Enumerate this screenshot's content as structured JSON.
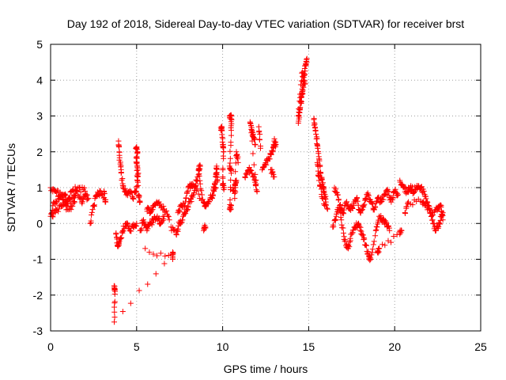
{
  "chart_data": {
    "type": "scatter",
    "title": "Day 192 of 2018, Sidereal Day-to-day VTEC variation (SDTVAR) for receiver brst",
    "xlabel": "GPS time / hours",
    "ylabel": "SDTVAR / TECUs",
    "xlim": [
      0,
      25
    ],
    "ylim": [
      -3,
      5
    ],
    "xticks": [
      0,
      5,
      10,
      15,
      20,
      25
    ],
    "yticks": [
      -3,
      -2,
      -1,
      0,
      1,
      2,
      3,
      4,
      5
    ],
    "xtick_labels": [
      "0",
      "5",
      "10",
      "15",
      "20",
      "25"
    ],
    "ytick_labels": [
      "-3",
      "-2",
      "-1",
      "0",
      "1",
      "2",
      "3",
      "4",
      "5"
    ],
    "grid": true,
    "marker": "+",
    "series": [
      {
        "name": "SDTVAR",
        "color": "#ff0000",
        "segments": [
          [
            [
              0.0,
              0.2
            ],
            [
              0.2,
              0.6
            ],
            [
              0.5,
              0.7
            ],
            [
              0.8,
              0.8
            ],
            [
              1.0,
              0.6
            ],
            [
              1.3,
              0.7
            ],
            [
              1.5,
              0.9
            ],
            [
              1.8,
              0.6
            ],
            [
              2.0,
              0.8
            ],
            [
              2.2,
              0.7
            ]
          ],
          [
            [
              0.0,
              1.0
            ],
            [
              0.3,
              0.9
            ],
            [
              0.6,
              0.8
            ],
            [
              0.9,
              0.5
            ],
            [
              1.2,
              0.9
            ],
            [
              1.6,
              1.0
            ],
            [
              2.0,
              0.9
            ]
          ],
          [
            [
              0.1,
              0.2
            ],
            [
              0.4,
              0.4
            ],
            [
              0.7,
              0.5
            ],
            [
              1.1,
              0.4
            ],
            [
              1.4,
              0.6
            ]
          ],
          [
            [
              2.3,
              0.0
            ],
            [
              2.5,
              0.5
            ],
            [
              2.7,
              0.8
            ],
            [
              2.9,
              0.9
            ],
            [
              3.2,
              0.6
            ],
            [
              3.1,
              0.9
            ]
          ],
          [
            [
              3.8,
              -0.3
            ],
            [
              3.9,
              -0.6
            ],
            [
              4.0,
              -0.5
            ],
            [
              4.2,
              -0.2
            ],
            [
              4.4,
              0.0
            ],
            [
              4.6,
              -0.2
            ],
            [
              4.8,
              -0.1
            ],
            [
              5.0,
              0.0
            ]
          ],
          [
            [
              3.95,
              2.3
            ],
            [
              4.0,
              1.9
            ],
            [
              4.1,
              1.5
            ],
            [
              4.2,
              1.0
            ],
            [
              4.4,
              0.8
            ],
            [
              4.6,
              0.9
            ],
            [
              4.8,
              0.7
            ],
            [
              5.0,
              1.0
            ],
            [
              5.1,
              1.4
            ],
            [
              5.0,
              1.7
            ],
            [
              5.05,
              2.0
            ],
            [
              4.95,
              2.1
            ],
            [
              5.1,
              0.8
            ],
            [
              5.2,
              0.6
            ]
          ],
          [
            [
              5.2,
              -0.2
            ],
            [
              5.4,
              0.1
            ],
            [
              5.6,
              -0.2
            ],
            [
              5.8,
              0.0
            ],
            [
              6.0,
              0.1
            ],
            [
              6.2,
              0.2
            ],
            [
              6.4,
              0.0
            ],
            [
              6.6,
              0.2
            ]
          ],
          [
            [
              5.6,
              0.4
            ],
            [
              5.8,
              0.3
            ],
            [
              6.0,
              0.5
            ],
            [
              6.3,
              0.6
            ],
            [
              6.6,
              0.4
            ],
            [
              6.9,
              0.1
            ]
          ],
          [
            [
              3.7,
              -1.8
            ],
            [
              3.75,
              -1.85
            ],
            [
              3.7,
              -2.75
            ],
            [
              7.1,
              -0.8
            ],
            [
              7.1,
              -1.0
            ],
            [
              5.5,
              -0.7
            ]
          ],
          [
            [
              7.0,
              -0.1
            ],
            [
              7.3,
              -0.3
            ],
            [
              7.5,
              0.0
            ],
            [
              7.7,
              0.2
            ],
            [
              7.9,
              0.4
            ],
            [
              8.1,
              0.6
            ],
            [
              8.3,
              0.8
            ],
            [
              8.5,
              1.2
            ],
            [
              8.7,
              1.6
            ],
            [
              8.6,
              1.5
            ],
            [
              8.8,
              0.8
            ]
          ],
          [
            [
              7.4,
              0.3
            ],
            [
              7.6,
              0.5
            ],
            [
              7.8,
              0.5
            ],
            [
              8.0,
              1.0
            ],
            [
              8.2,
              1.1
            ],
            [
              8.4,
              1.0
            ],
            [
              8.9,
              0.6
            ],
            [
              9.0,
              0.5
            ],
            [
              9.2,
              0.6
            ],
            [
              9.4,
              0.8
            ]
          ],
          [
            [
              8.9,
              -0.2
            ],
            [
              9.0,
              -0.1
            ]
          ],
          [
            [
              9.4,
              0.7
            ],
            [
              9.5,
              1.0
            ],
            [
              9.6,
              1.3
            ],
            [
              9.65,
              1.6
            ],
            [
              9.7,
              1.2
            ],
            [
              9.5,
              0.9
            ]
          ],
          [
            [
              9.9,
              2.6
            ],
            [
              9.95,
              2.7
            ],
            [
              10.0,
              2.2
            ],
            [
              10.05,
              2.0
            ],
            [
              10.0,
              1.1
            ],
            [
              10.1,
              1.0
            ]
          ],
          [
            [
              10.4,
              3.0
            ],
            [
              10.5,
              3.0
            ],
            [
              10.5,
              2.6
            ],
            [
              10.4,
              1.6
            ],
            [
              10.5,
              1.5
            ],
            [
              10.4,
              0.4
            ],
            [
              10.5,
              0.5
            ]
          ],
          [
            [
              10.6,
              0.9
            ],
            [
              10.8,
              1.2
            ],
            [
              10.7,
              0.7
            ],
            [
              10.8,
              2.0
            ],
            [
              10.9,
              1.7
            ]
          ],
          [
            [
              11.3,
              1.3
            ],
            [
              11.5,
              1.5
            ],
            [
              11.7,
              1.4
            ],
            [
              11.9,
              1.2
            ],
            [
              12.0,
              0.9
            ],
            [
              11.6,
              2.8
            ],
            [
              11.7,
              2.6
            ],
            [
              11.8,
              2.4
            ],
            [
              11.9,
              2.2
            ]
          ],
          [
            [
              12.1,
              2.7
            ],
            [
              12.2,
              2.1
            ]
          ],
          [
            [
              12.3,
              1.5
            ],
            [
              12.5,
              1.7
            ],
            [
              12.7,
              1.8
            ],
            [
              12.9,
              2.0
            ],
            [
              13.0,
              2.3
            ],
            [
              13.1,
              2.2
            ]
          ],
          [
            [
              12.8,
              1.5
            ],
            [
              13.0,
              1.3
            ]
          ],
          [
            [
              14.4,
              2.8
            ],
            [
              14.5,
              3.2
            ],
            [
              14.6,
              3.6
            ],
            [
              14.7,
              4.0
            ],
            [
              14.8,
              4.4
            ],
            [
              14.9,
              4.6
            ],
            [
              14.7,
              3.8
            ],
            [
              14.55,
              3.4
            ],
            [
              14.4,
              3.0
            ],
            [
              14.6,
              4.2
            ],
            [
              14.8,
              3.9
            ]
          ],
          [
            [
              15.3,
              2.9
            ],
            [
              15.4,
              2.6
            ],
            [
              15.5,
              2.2
            ],
            [
              15.6,
              1.8
            ],
            [
              15.7,
              1.4
            ],
            [
              15.8,
              1.1
            ],
            [
              15.9,
              0.9
            ],
            [
              16.0,
              0.6
            ],
            [
              15.5,
              1.7
            ],
            [
              15.6,
              1.2
            ],
            [
              15.8,
              0.7
            ],
            [
              16.1,
              0.4
            ]
          ],
          [
            [
              16.4,
              -0.1
            ],
            [
              16.6,
              0.2
            ],
            [
              16.8,
              0.5
            ],
            [
              17.0,
              0.3
            ],
            [
              17.2,
              0.6
            ],
            [
              17.4,
              0.4
            ],
            [
              17.6,
              0.5
            ],
            [
              17.8,
              0.7
            ],
            [
              18.0,
              0.3
            ],
            [
              18.2,
              0.5
            ],
            [
              18.4,
              0.8
            ],
            [
              18.6,
              0.6
            ],
            [
              18.8,
              0.4
            ],
            [
              19.0,
              0.7
            ],
            [
              19.2,
              0.6
            ],
            [
              19.4,
              0.8
            ],
            [
              19.6,
              0.9
            ],
            [
              19.8,
              0.6
            ],
            [
              20.0,
              0.9
            ],
            [
              20.2,
              0.8
            ]
          ],
          [
            [
              16.5,
              1.0
            ],
            [
              16.7,
              0.8
            ],
            [
              16.9,
              0.1
            ],
            [
              17.1,
              -0.5
            ],
            [
              17.3,
              -0.7
            ],
            [
              17.5,
              -0.3
            ],
            [
              17.7,
              -0.1
            ],
            [
              17.9,
              0.0
            ],
            [
              18.1,
              -0.3
            ],
            [
              18.3,
              -0.6
            ],
            [
              18.5,
              -0.9
            ],
            [
              18.6,
              -1.0
            ],
            [
              18.9,
              -0.2
            ],
            [
              19.1,
              0.2
            ],
            [
              19.3,
              0.1
            ],
            [
              19.5,
              0.0
            ],
            [
              19.7,
              -0.2
            ]
          ],
          [
            [
              19.0,
              -0.8
            ],
            [
              19.1,
              -0.7
            ],
            [
              20.3,
              -0.3
            ],
            [
              20.4,
              -0.2
            ]
          ],
          [
            [
              20.3,
              1.2
            ],
            [
              20.5,
              1.0
            ],
            [
              20.7,
              0.9
            ],
            [
              20.9,
              1.0
            ],
            [
              21.1,
              0.9
            ],
            [
              21.3,
              1.0
            ],
            [
              21.5,
              1.0
            ],
            [
              21.7,
              0.9
            ],
            [
              21.9,
              0.6
            ],
            [
              22.0,
              0.4
            ],
            [
              22.2,
              0.1
            ],
            [
              22.4,
              -0.2
            ],
            [
              22.6,
              0.0
            ],
            [
              22.8,
              0.3
            ]
          ],
          [
            [
              20.6,
              0.3
            ],
            [
              20.8,
              0.6
            ],
            [
              21.6,
              0.6
            ],
            [
              21.8,
              0.5
            ],
            [
              22.2,
              0.3
            ],
            [
              22.5,
              0.4
            ],
            [
              22.7,
              0.5
            ],
            [
              22.8,
              0.1
            ]
          ]
        ]
      }
    ]
  }
}
